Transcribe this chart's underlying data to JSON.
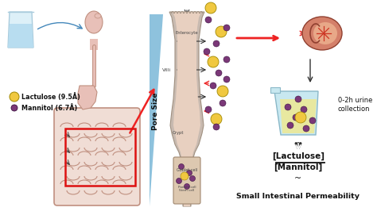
{
  "bg_color": "#ffffff",
  "left_labels": {
    "lactulose": "Lactulose (9.5Å)",
    "mannitol": "Mannitol (6.7Å)"
  },
  "center_label": "Pore Size",
  "right_labels": {
    "urine": "0-2h urine\ncollection",
    "lactulose_top": "[Lactulose]",
    "mannitol_bot": "[Mannitol]",
    "tilde": "~",
    "permeability": "Small Intestinal Permeability"
  },
  "arrow_red": "#ee2222",
  "arrow_black": "#222222",
  "arrow_blue": "#4488bb",
  "text_color": "#111111",
  "blue_tri_color": "#7ab8d8",
  "body_skin": "#e8c0b8",
  "body_edge": "#c09080",
  "intestine_fill": "#f0ddd5",
  "intestine_edge": "#c09080",
  "villus_fill": "#e8d0c0",
  "villus_edge": "#b09080",
  "villus_wall": "#c8b0a8",
  "crypt_fill": "#e0c8b8",
  "yellow_mol": "#f0c840",
  "yellow_edge": "#a08800",
  "purple_mol": "#7b3878",
  "purple_edge": "#3a1040",
  "beaker_glass": "#c8e8f0",
  "beaker_liquid": "#e8e8a0",
  "kidney_outer": "#d4806a",
  "kidney_inner": "#e8a888"
}
